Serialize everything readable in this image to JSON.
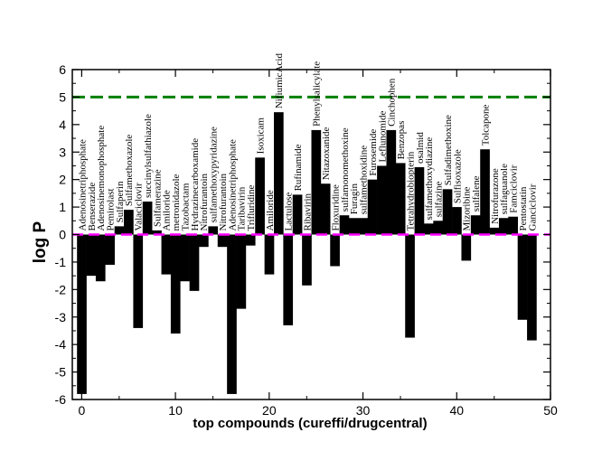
{
  "chart_data": {
    "type": "bar",
    "xlabel": "top compounds (cureffi/drugcentral)",
    "ylabel": "log P",
    "xlim": [
      -1,
      50
    ],
    "ylim": [
      -6,
      6
    ],
    "xticks": [
      0,
      10,
      20,
      30,
      40,
      50
    ],
    "yticks": [
      -6,
      -5,
      -4,
      -3,
      -2,
      -1,
      0,
      1,
      2,
      3,
      4,
      5,
      6
    ],
    "grid": false,
    "reference_lines": [
      {
        "y": 5,
        "color": "#008000",
        "style": "dashed"
      },
      {
        "y": 0,
        "color": "#ff00ff",
        "style": "dashed"
      }
    ],
    "bar_color": "#000000",
    "bars": [
      {
        "x": 0,
        "label": "Adenosinetriphosphate",
        "value": -5.8
      },
      {
        "x": 1,
        "label": "Benserazide",
        "value": -1.5
      },
      {
        "x": 2,
        "label": "Adenosinemonophosphate",
        "value": -1.7
      },
      {
        "x": 3,
        "label": "Pemirolast",
        "value": -1.1
      },
      {
        "x": 4,
        "label": "Sulfaperin",
        "value": 0.3
      },
      {
        "x": 5,
        "label": "Sulfamethoxazole",
        "value": 0.9
      },
      {
        "x": 6,
        "label": "Valaciclovir",
        "value": -3.4
      },
      {
        "x": 7,
        "label": "succinylsulfathiazole",
        "value": 1.2
      },
      {
        "x": 8,
        "label": "Sulfamerazine",
        "value": 0.15
      },
      {
        "x": 9,
        "label": "Amiloride",
        "value": -1.45
      },
      {
        "x": 10,
        "label": "metronidazole",
        "value": -3.6
      },
      {
        "x": 11,
        "label": "Tazobactam",
        "value": -1.7
      },
      {
        "x": 12,
        "label": "Hydrazinecarboxamide",
        "value": -2.05
      },
      {
        "x": 13,
        "label": "Nitrofurantoin",
        "value": -0.45
      },
      {
        "x": 14,
        "label": "sulfamethoxypyridazine",
        "value": 0.3
      },
      {
        "x": 15,
        "label": "Nitrofurantoin",
        "value": -0.45
      },
      {
        "x": 16,
        "label": "Adenosinetriphosphate",
        "value": -5.8
      },
      {
        "x": 17,
        "label": "Taribavirin",
        "value": -2.7
      },
      {
        "x": 18,
        "label": "Trifluridine",
        "value": -0.4
      },
      {
        "x": 19,
        "label": "Isoxicam",
        "value": 2.8
      },
      {
        "x": 20,
        "label": "Amiloride",
        "value": -1.45
      },
      {
        "x": 21,
        "label": "NifiumicAcid",
        "value": 4.45
      },
      {
        "x": 22,
        "label": "Lactulose",
        "value": -3.3
      },
      {
        "x": 23,
        "label": "Rufinamide",
        "value": 1.45
      },
      {
        "x": 24,
        "label": "Ribavirin",
        "value": -1.85
      },
      {
        "x": 25,
        "label": "Phenylsalicylate",
        "value": 3.8
      },
      {
        "x": 26,
        "label": "Nitazoxanide",
        "value": 1.85
      },
      {
        "x": 27,
        "label": "Floxuridine",
        "value": -1.15
      },
      {
        "x": 28,
        "label": "sulfamonomethoxine",
        "value": 0.7
      },
      {
        "x": 29,
        "label": "Furagin",
        "value": 0.6
      },
      {
        "x": 30,
        "label": "sulfamethoxidine",
        "value": 0.6
      },
      {
        "x": 31,
        "label": "Furosemide",
        "value": 2.0
      },
      {
        "x": 32,
        "label": "Leflunomide",
        "value": 2.5
      },
      {
        "x": 33,
        "label": "Cinchophen",
        "value": 3.8
      },
      {
        "x": 34,
        "label": "Benzopas",
        "value": 2.6
      },
      {
        "x": 35,
        "label": "Tetrahydrobiopterin",
        "value": -3.75
      },
      {
        "x": 36,
        "label": "osalmid",
        "value": 2.45
      },
      {
        "x": 37,
        "label": "sulfamethoxydiazine",
        "value": 0.4
      },
      {
        "x": 38,
        "label": "sulfazine",
        "value": 0.5
      },
      {
        "x": 39,
        "label": "Sulfadimethoxine",
        "value": 1.65
      },
      {
        "x": 40,
        "label": "Sulfisoxazole",
        "value": 1.0
      },
      {
        "x": 41,
        "label": "Mizoribine",
        "value": -0.95
      },
      {
        "x": 42,
        "label": "sulfalene",
        "value": 0.7
      },
      {
        "x": 43,
        "label": "Tolcapone",
        "value": 3.1
      },
      {
        "x": 44,
        "label": "Nitrofurazone",
        "value": 0.25
      },
      {
        "x": 45,
        "label": "sulfaguanole",
        "value": 0.6
      },
      {
        "x": 46,
        "label": "Famciclovir",
        "value": 0.65
      },
      {
        "x": 47,
        "label": "Pentostatin",
        "value": -3.1
      },
      {
        "x": 48,
        "label": "Ganciclovir",
        "value": -3.85
      }
    ]
  }
}
